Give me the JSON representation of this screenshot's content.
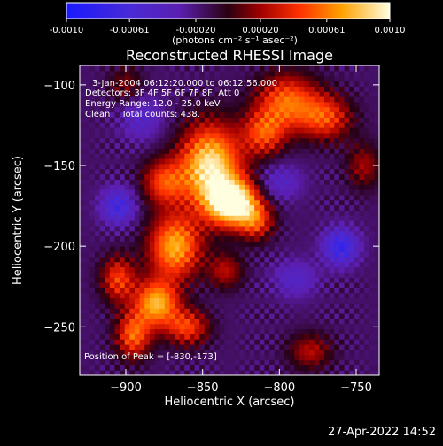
{
  "chart_data": {
    "type": "heatmap",
    "title": "Reconstructed RHESSI Image",
    "xlabel": "Heliocentric X (arcsec)",
    "ylabel": "Heliocentric Y (arcsec)",
    "xlim": [
      -930,
      -735
    ],
    "ylim": [
      -280,
      -88
    ],
    "x_ticks": [
      "-900",
      "-850",
      "-800",
      "-750"
    ],
    "y_ticks": [
      "-100",
      "-150",
      "-200",
      "-250"
    ],
    "colorbar": {
      "ticks": [
        "-0.0010",
        "-0.00061",
        "-0.00020",
        "0.00020",
        "0.00061",
        "0.0010"
      ],
      "range": [
        -0.001,
        0.001
      ],
      "units_label": "(photons cm⁻² s⁻¹ asec⁻²)"
    },
    "annotations": [
      "3-Jan-2004 06:12:20.000 to 06:12:56.000",
      "Detectors: 3F 4F 5F 6F 7F 8F, Att 0",
      "Energy Range: 12.0 - 25.0 keV",
      "Clean    Total counts: 438."
    ],
    "peak_label": "Position of Peak = [-830,-173]",
    "peak_position": [
      -830,
      -173
    ],
    "grid": false
  },
  "footer": {
    "timestamp": "27-Apr-2022 14:52"
  }
}
